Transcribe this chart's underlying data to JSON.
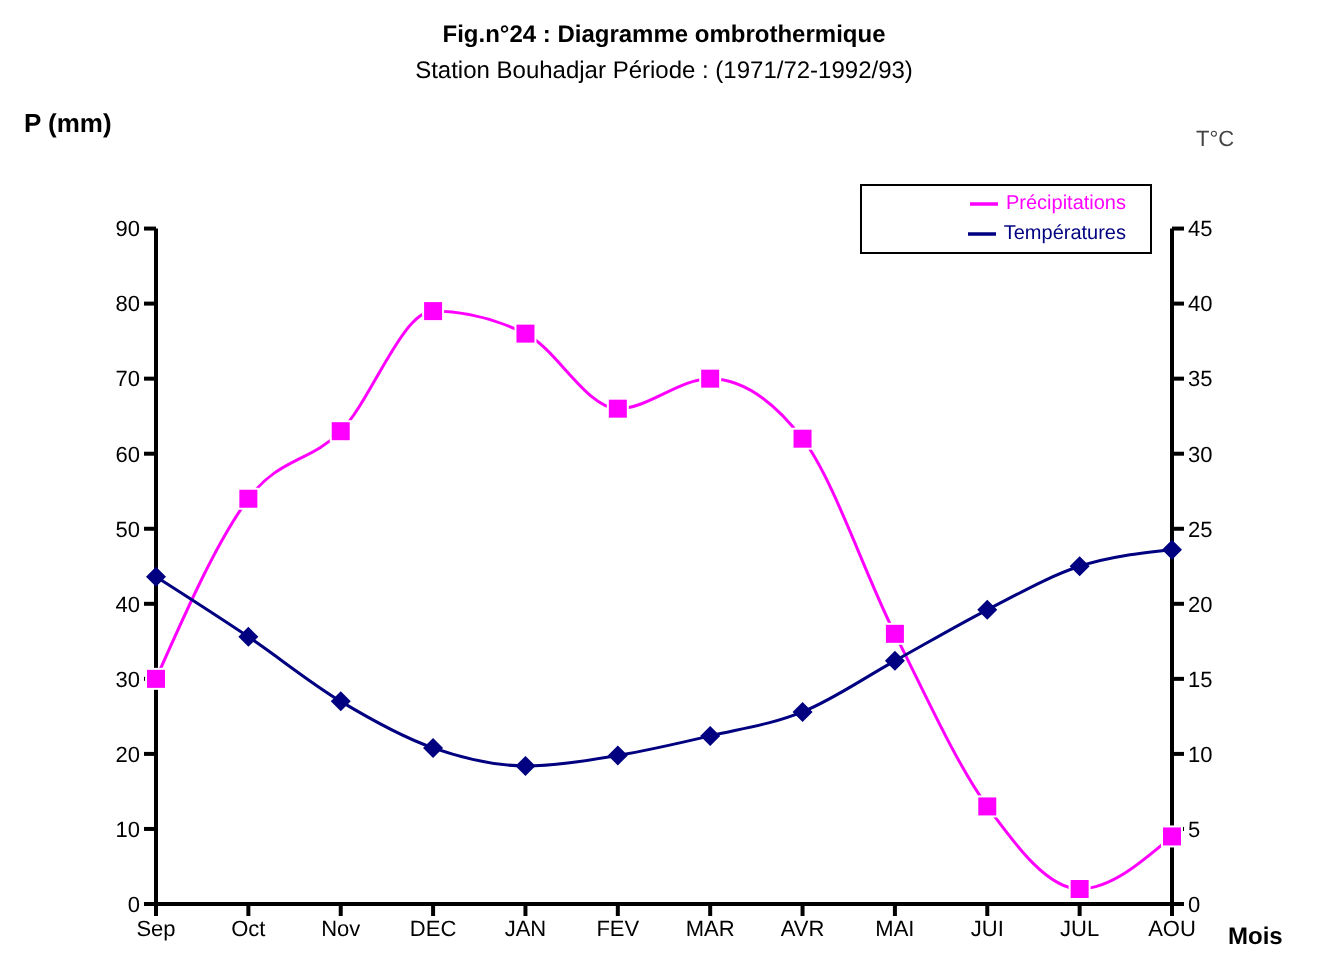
{
  "chart_data": {
    "type": "line",
    "title": "Fig.n°24 : Diagramme ombrothermique",
    "subtitle": "Station Bouhadjar  Période : (1971/72-1992/93)",
    "xlabel": "Mois",
    "ylabel": "P (mm)",
    "y2label": "T°C",
    "categories": [
      "Sep",
      "Oct",
      "Nov",
      "DEC",
      "JAN",
      "FEV",
      "MAR",
      "AVR",
      "MAI",
      "JUI",
      "JUL",
      "AOU"
    ],
    "series": [
      {
        "name": "Précipitations",
        "color": "#ff00ff",
        "marker": "square",
        "values": [
          30,
          54,
          63,
          79,
          76,
          66,
          70,
          62,
          36,
          13,
          2,
          9
        ]
      },
      {
        "name": "Températures",
        "color": "#000080",
        "marker": "diamond",
        "axis": "y2",
        "values": [
          21.8,
          17.8,
          13.5,
          10.4,
          9.2,
          9.9,
          11.2,
          12.8,
          16.2,
          19.6,
          22.5,
          23.6
        ]
      }
    ],
    "ylim": [
      0,
      90
    ],
    "yticks": [
      0,
      10,
      20,
      30,
      40,
      50,
      60,
      70,
      80,
      90
    ],
    "y2lim": [
      0,
      45
    ],
    "y2ticks": [
      0,
      5,
      10,
      15,
      20,
      25,
      30,
      35,
      40,
      45
    ],
    "grid": false,
    "legend": "top right"
  }
}
